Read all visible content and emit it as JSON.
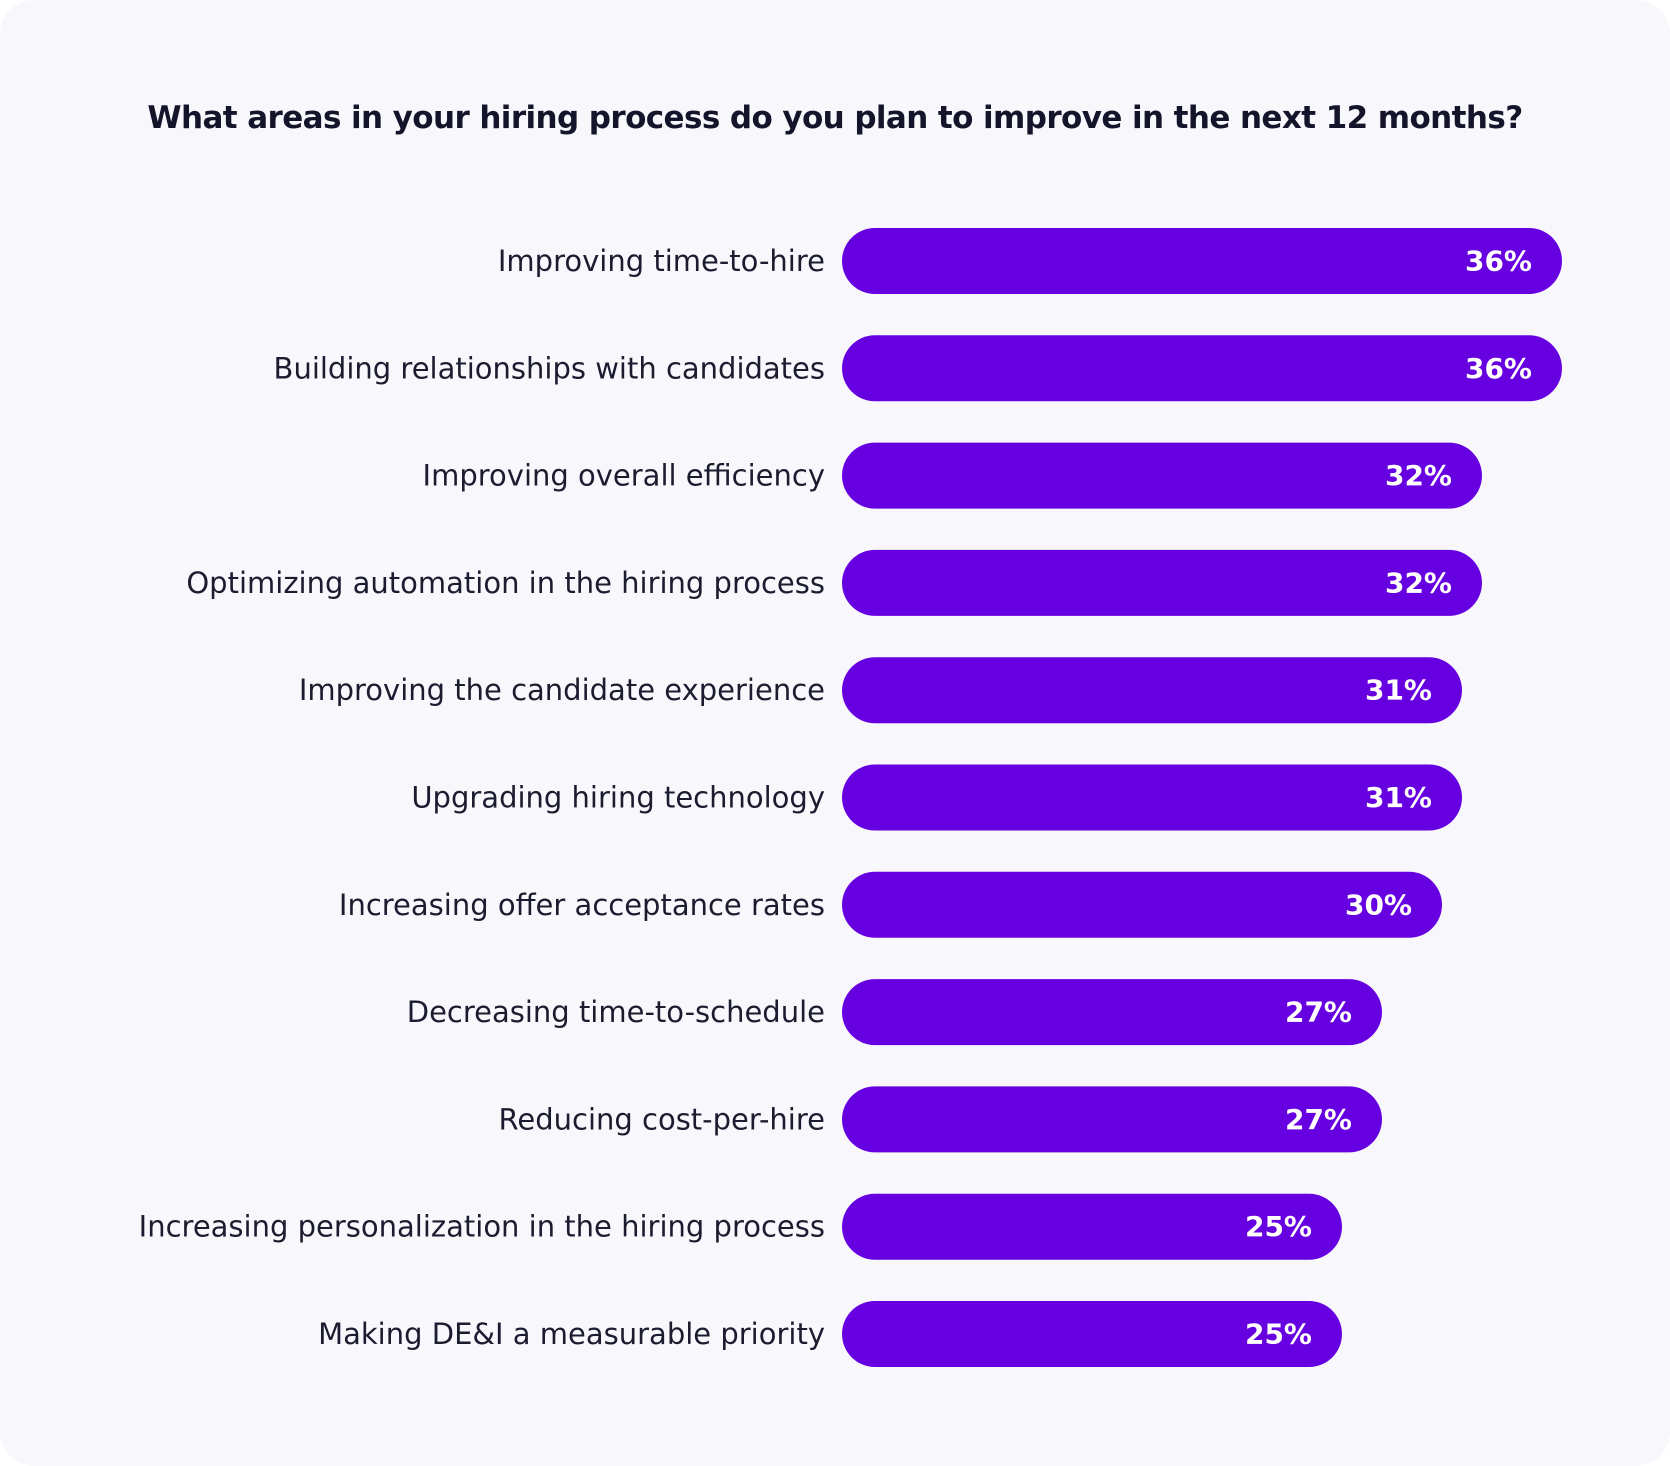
{
  "chart_data": {
    "type": "bar",
    "orientation": "horizontal",
    "title": "What areas in your hiring process do you plan to improve in the next 12 months?",
    "categories": [
      "Improving time-to-hire",
      "Building relationships with candidates",
      "Improving overall efficiency",
      "Optimizing automation in the hiring process",
      "Improving the candidate experience",
      "Upgrading hiring technology",
      "Increasing offer acceptance rates",
      "Decreasing time-to-schedule",
      "Reducing cost-per-hire",
      "Increasing personalization in the hiring process",
      "Making DE&I a measurable priority"
    ],
    "values": [
      36,
      36,
      32,
      32,
      31,
      31,
      30,
      27,
      27,
      25,
      25
    ],
    "value_labels": [
      "36%",
      "36%",
      "32%",
      "32%",
      "31%",
      "31%",
      "30%",
      "27%",
      "27%",
      "25%",
      "25%"
    ],
    "unit": "%",
    "bar_color": "#6600e0",
    "label_color": "#ffffff",
    "background_color": "#f8f8fc",
    "grid": false,
    "legend": "none"
  }
}
